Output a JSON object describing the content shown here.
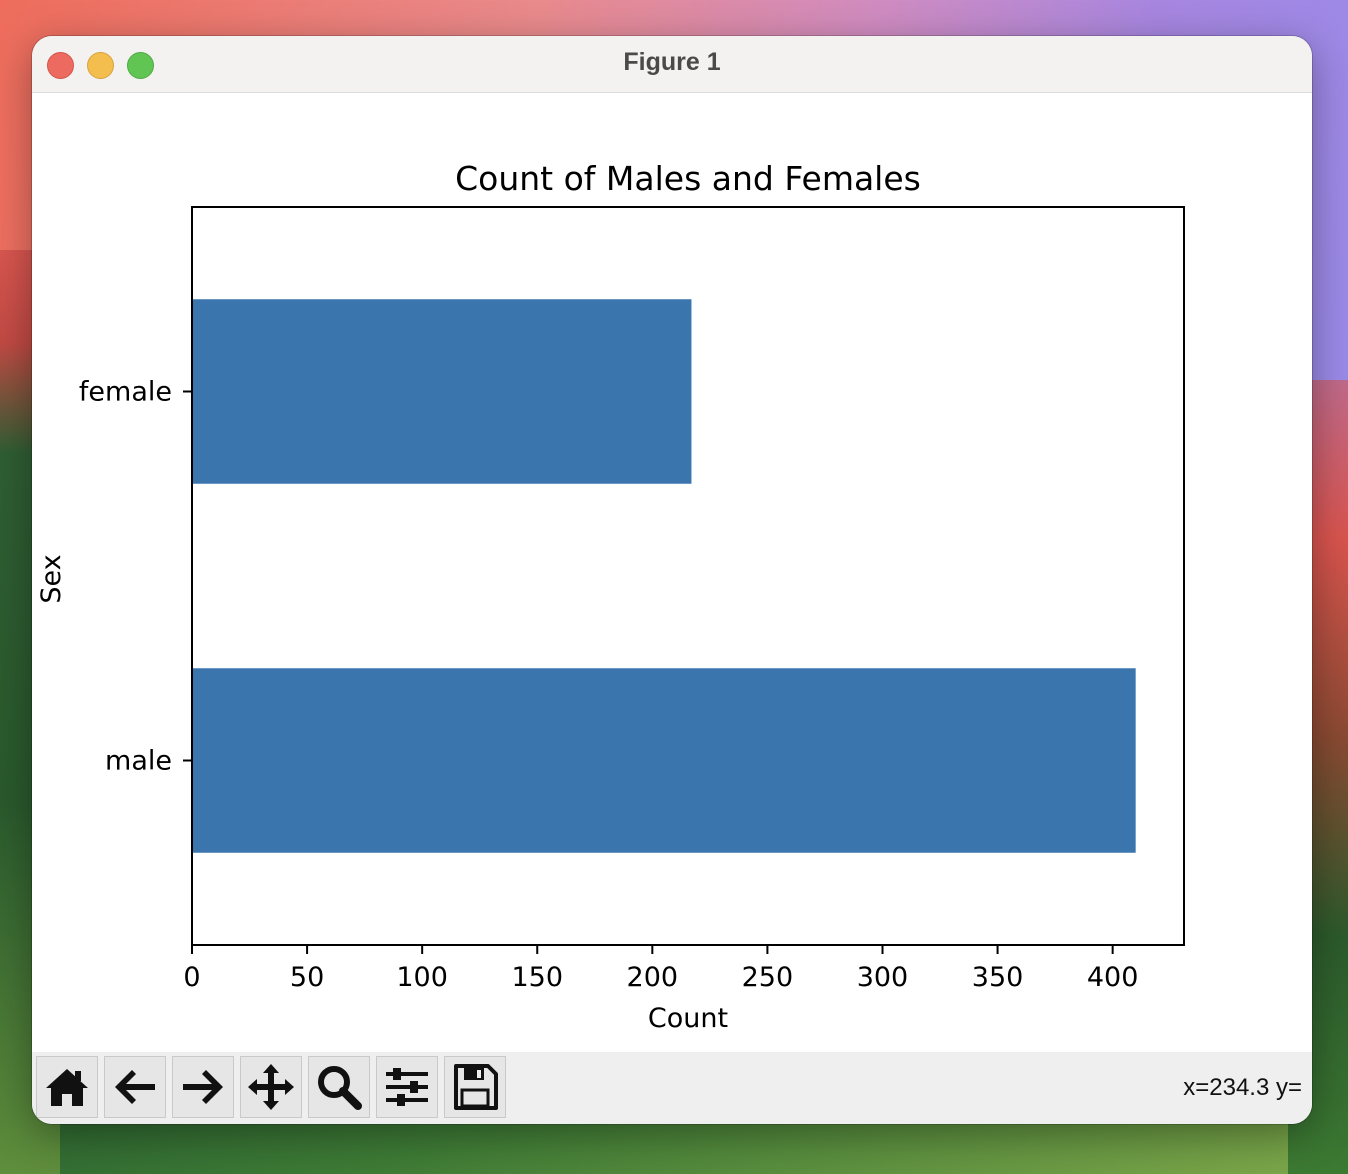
{
  "window": {
    "title": "Figure 1"
  },
  "toolbar": {
    "buttons": [
      {
        "name": "home",
        "icon": "home-icon"
      },
      {
        "name": "back",
        "icon": "arrow-left-icon"
      },
      {
        "name": "forward",
        "icon": "arrow-right-icon"
      },
      {
        "name": "pan",
        "icon": "move-icon"
      },
      {
        "name": "zoom",
        "icon": "magnifier-icon"
      },
      {
        "name": "configure-subplots",
        "icon": "sliders-icon"
      },
      {
        "name": "save",
        "icon": "floppy-disk-icon"
      }
    ],
    "coords": "x=234.3 y="
  },
  "colors": {
    "bar": "#3a75ae",
    "axis": "#000000"
  },
  "chart_data": {
    "type": "bar",
    "orientation": "horizontal",
    "title": "Count of Males and Females",
    "xlabel": "Count",
    "ylabel": "Sex",
    "categories": [
      "male",
      "female"
    ],
    "values": [
      410,
      217
    ],
    "xlim": [
      0,
      431
    ],
    "xticks": [
      0,
      50,
      100,
      150,
      200,
      250,
      300,
      350,
      400
    ],
    "grid": false
  }
}
